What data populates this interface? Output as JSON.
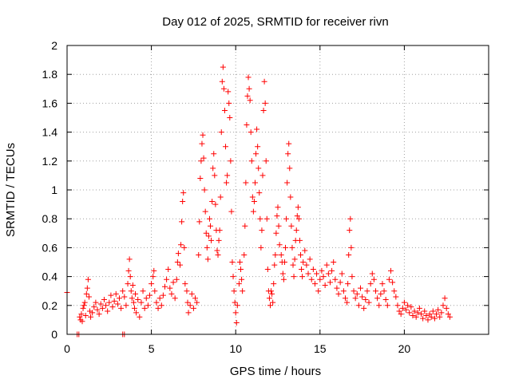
{
  "chart_data": {
    "type": "scatter",
    "title": "Day 012 of 2025, SRMTID for receiver rivn",
    "xlabel": "GPS time / hours",
    "ylabel": "SRMTID / TECUs",
    "xlim": [
      0,
      25
    ],
    "ylim": [
      0,
      2
    ],
    "xticks": [
      0,
      5,
      10,
      15,
      20
    ],
    "yticks": [
      0,
      0.2,
      0.4,
      0.6,
      0.8,
      1,
      1.2,
      1.4,
      1.6,
      1.8,
      2
    ],
    "grid": true,
    "marker": "plus",
    "series": [
      {
        "name": "SRMTID",
        "color": "#ff0000",
        "points": [
          [
            0.0,
            0.29
          ],
          [
            0.6,
            0.0
          ],
          [
            0.7,
            0.0
          ],
          [
            3.3,
            0.0
          ],
          [
            3.4,
            0.0
          ],
          [
            0.75,
            0.12
          ],
          [
            0.8,
            0.1
          ],
          [
            0.85,
            0.14
          ],
          [
            0.9,
            0.09
          ],
          [
            0.95,
            0.18
          ],
          [
            1.0,
            0.2
          ],
          [
            1.05,
            0.22
          ],
          [
            1.1,
            0.13
          ],
          [
            1.15,
            0.28
          ],
          [
            1.2,
            0.32
          ],
          [
            1.25,
            0.38
          ],
          [
            1.3,
            0.26
          ],
          [
            1.35,
            0.16
          ],
          [
            1.4,
            0.12
          ],
          [
            1.5,
            0.15
          ],
          [
            1.6,
            0.19
          ],
          [
            1.7,
            0.22
          ],
          [
            1.8,
            0.17
          ],
          [
            1.9,
            0.14
          ],
          [
            2.0,
            0.21
          ],
          [
            2.1,
            0.18
          ],
          [
            2.2,
            0.24
          ],
          [
            2.3,
            0.2
          ],
          [
            2.4,
            0.16
          ],
          [
            2.5,
            0.22
          ],
          [
            2.6,
            0.27
          ],
          [
            2.7,
            0.19
          ],
          [
            2.8,
            0.23
          ],
          [
            2.9,
            0.28
          ],
          [
            3.0,
            0.21
          ],
          [
            3.1,
            0.25
          ],
          [
            3.2,
            0.18
          ],
          [
            3.3,
            0.3
          ],
          [
            3.4,
            0.26
          ],
          [
            3.5,
            0.2
          ],
          [
            3.6,
            0.35
          ],
          [
            3.65,
            0.44
          ],
          [
            3.7,
            0.52
          ],
          [
            3.75,
            0.4
          ],
          [
            3.8,
            0.3
          ],
          [
            3.85,
            0.25
          ],
          [
            3.9,
            0.34
          ],
          [
            3.95,
            0.22
          ],
          [
            4.0,
            0.18
          ],
          [
            4.05,
            0.28
          ],
          [
            4.1,
            0.15
          ],
          [
            4.2,
            0.24
          ],
          [
            4.3,
            0.12
          ],
          [
            4.4,
            0.22
          ],
          [
            4.5,
            0.3
          ],
          [
            4.6,
            0.18
          ],
          [
            4.7,
            0.25
          ],
          [
            4.8,
            0.2
          ],
          [
            4.9,
            0.27
          ],
          [
            5.0,
            0.35
          ],
          [
            5.1,
            0.4
          ],
          [
            5.15,
            0.44
          ],
          [
            5.2,
            0.3
          ],
          [
            5.3,
            0.22
          ],
          [
            5.4,
            0.18
          ],
          [
            5.5,
            0.25
          ],
          [
            5.6,
            0.2
          ],
          [
            5.7,
            0.27
          ],
          [
            5.8,
            0.33
          ],
          [
            5.9,
            0.38
          ],
          [
            6.0,
            0.45
          ],
          [
            6.1,
            0.32
          ],
          [
            6.2,
            0.28
          ],
          [
            6.3,
            0.36
          ],
          [
            6.4,
            0.25
          ],
          [
            6.5,
            0.38
          ],
          [
            6.55,
            0.5
          ],
          [
            6.6,
            0.56
          ],
          [
            6.7,
            0.48
          ],
          [
            6.75,
            0.62
          ],
          [
            6.8,
            0.78
          ],
          [
            6.85,
            0.92
          ],
          [
            6.9,
            0.98
          ],
          [
            6.95,
            0.6
          ],
          [
            7.0,
            0.35
          ],
          [
            7.1,
            0.3
          ],
          [
            7.15,
            0.22
          ],
          [
            7.2,
            0.15
          ],
          [
            7.3,
            0.2
          ],
          [
            7.4,
            0.28
          ],
          [
            7.5,
            0.18
          ],
          [
            7.6,
            0.25
          ],
          [
            7.7,
            0.22
          ],
          [
            7.8,
            0.55
          ],
          [
            7.85,
            0.78
          ],
          [
            7.9,
            1.08
          ],
          [
            7.95,
            1.2
          ],
          [
            8.0,
            1.32
          ],
          [
            8.05,
            1.38
          ],
          [
            8.1,
            1.22
          ],
          [
            8.15,
            1.0
          ],
          [
            8.2,
            0.85
          ],
          [
            8.25,
            0.7
          ],
          [
            8.3,
            0.6
          ],
          [
            8.35,
            0.52
          ],
          [
            8.4,
            0.68
          ],
          [
            8.45,
            0.8
          ],
          [
            8.5,
            0.75
          ],
          [
            8.55,
            0.65
          ],
          [
            8.6,
            0.92
          ],
          [
            8.65,
            1.15
          ],
          [
            8.7,
            1.25
          ],
          [
            8.75,
            1.1
          ],
          [
            8.8,
            0.9
          ],
          [
            8.85,
            0.72
          ],
          [
            8.9,
            0.58
          ],
          [
            8.95,
            0.55
          ],
          [
            9.0,
            0.65
          ],
          [
            9.05,
            0.72
          ],
          [
            9.1,
            0.95
          ],
          [
            9.15,
            1.4
          ],
          [
            9.2,
            1.75
          ],
          [
            9.25,
            1.85
          ],
          [
            9.3,
            1.7
          ],
          [
            9.35,
            1.55
          ],
          [
            9.4,
            1.3
          ],
          [
            9.45,
            1.05
          ],
          [
            9.5,
            1.1
          ],
          [
            9.55,
            1.68
          ],
          [
            9.6,
            1.6
          ],
          [
            9.65,
            1.5
          ],
          [
            9.7,
            1.2
          ],
          [
            9.75,
            0.85
          ],
          [
            9.8,
            0.5
          ],
          [
            9.85,
            0.4
          ],
          [
            9.9,
            0.3
          ],
          [
            9.95,
            0.22
          ],
          [
            10.0,
            0.15
          ],
          [
            10.05,
            0.08
          ],
          [
            10.1,
            0.2
          ],
          [
            10.2,
            0.35
          ],
          [
            10.25,
            0.5
          ],
          [
            10.3,
            0.45
          ],
          [
            10.35,
            0.38
          ],
          [
            10.4,
            0.3
          ],
          [
            10.5,
            0.55
          ],
          [
            10.55,
            0.75
          ],
          [
            10.6,
            1.05
          ],
          [
            10.65,
            1.45
          ],
          [
            10.7,
            1.65
          ],
          [
            10.75,
            1.78
          ],
          [
            10.8,
            1.7
          ],
          [
            10.85,
            1.62
          ],
          [
            10.9,
            1.4
          ],
          [
            10.95,
            1.2
          ],
          [
            11.0,
            0.95
          ],
          [
            11.05,
            0.85
          ],
          [
            11.1,
            0.92
          ],
          [
            11.15,
            1.05
          ],
          [
            11.2,
            1.25
          ],
          [
            11.25,
            1.42
          ],
          [
            11.3,
            1.3
          ],
          [
            11.35,
            1.15
          ],
          [
            11.4,
            0.98
          ],
          [
            11.45,
            0.8
          ],
          [
            11.5,
            0.6
          ],
          [
            11.55,
            0.72
          ],
          [
            11.6,
            1.1
          ],
          [
            11.65,
            1.55
          ],
          [
            11.7,
            1.75
          ],
          [
            11.75,
            1.6
          ],
          [
            11.8,
            1.2
          ],
          [
            11.85,
            0.8
          ],
          [
            11.9,
            0.45
          ],
          [
            11.95,
            0.3
          ],
          [
            12.0,
            0.25
          ],
          [
            12.05,
            0.2
          ],
          [
            12.1,
            0.3
          ],
          [
            12.15,
            0.28
          ],
          [
            12.2,
            0.22
          ],
          [
            12.25,
            0.35
          ],
          [
            12.3,
            0.48
          ],
          [
            12.35,
            0.55
          ],
          [
            12.4,
            0.7
          ],
          [
            12.45,
            0.82
          ],
          [
            12.5,
            0.88
          ],
          [
            12.55,
            0.75
          ],
          [
            12.6,
            0.62
          ],
          [
            12.7,
            0.55
          ],
          [
            12.75,
            0.5
          ],
          [
            12.8,
            0.42
          ],
          [
            12.85,
            0.38
          ],
          [
            12.9,
            0.5
          ],
          [
            12.95,
            0.6
          ],
          [
            13.0,
            0.8
          ],
          [
            13.05,
            1.05
          ],
          [
            13.1,
            1.25
          ],
          [
            13.15,
            1.32
          ],
          [
            13.2,
            1.15
          ],
          [
            13.25,
            0.95
          ],
          [
            13.3,
            0.75
          ],
          [
            13.35,
            0.6
          ],
          [
            13.4,
            0.48
          ],
          [
            13.45,
            0.4
          ],
          [
            13.5,
            0.52
          ],
          [
            13.55,
            0.65
          ],
          [
            13.6,
            0.72
          ],
          [
            13.65,
            0.82
          ],
          [
            13.7,
            0.88
          ],
          [
            13.75,
            0.8
          ],
          [
            13.8,
            0.65
          ],
          [
            13.85,
            0.55
          ],
          [
            13.9,
            0.45
          ],
          [
            13.95,
            0.4
          ],
          [
            14.0,
            0.5
          ],
          [
            14.1,
            0.58
          ],
          [
            14.2,
            0.48
          ],
          [
            14.3,
            0.42
          ],
          [
            14.4,
            0.52
          ],
          [
            14.5,
            0.38
          ],
          [
            14.6,
            0.45
          ],
          [
            14.7,
            0.35
          ],
          [
            14.8,
            0.42
          ],
          [
            14.9,
            0.3
          ],
          [
            15.0,
            0.38
          ],
          [
            15.1,
            0.44
          ],
          [
            15.2,
            0.4
          ],
          [
            15.3,
            0.34
          ],
          [
            15.4,
            0.48
          ],
          [
            15.5,
            0.42
          ],
          [
            15.6,
            0.36
          ],
          [
            15.7,
            0.44
          ],
          [
            15.8,
            0.5
          ],
          [
            15.9,
            0.38
          ],
          [
            16.0,
            0.32
          ],
          [
            16.1,
            0.28
          ],
          [
            16.2,
            0.36
          ],
          [
            16.3,
            0.42
          ],
          [
            16.4,
            0.3
          ],
          [
            16.5,
            0.25
          ],
          [
            16.6,
            0.22
          ],
          [
            16.65,
            0.35
          ],
          [
            16.7,
            0.55
          ],
          [
            16.75,
            0.72
          ],
          [
            16.8,
            0.8
          ],
          [
            16.85,
            0.6
          ],
          [
            16.9,
            0.4
          ],
          [
            17.0,
            0.3
          ],
          [
            17.1,
            0.25
          ],
          [
            17.2,
            0.28
          ],
          [
            17.3,
            0.2
          ],
          [
            17.4,
            0.32
          ],
          [
            17.5,
            0.26
          ],
          [
            17.6,
            0.18
          ],
          [
            17.7,
            0.24
          ],
          [
            17.8,
            0.3
          ],
          [
            17.9,
            0.22
          ],
          [
            18.0,
            0.35
          ],
          [
            18.1,
            0.42
          ],
          [
            18.2,
            0.38
          ],
          [
            18.3,
            0.3
          ],
          [
            18.4,
            0.25
          ],
          [
            18.5,
            0.2
          ],
          [
            18.6,
            0.28
          ],
          [
            18.7,
            0.35
          ],
          [
            18.8,
            0.3
          ],
          [
            18.9,
            0.24
          ],
          [
            19.0,
            0.2
          ],
          [
            19.1,
            0.38
          ],
          [
            19.2,
            0.44
          ],
          [
            19.3,
            0.36
          ],
          [
            19.4,
            0.3
          ],
          [
            19.5,
            0.26
          ],
          [
            19.6,
            0.2
          ],
          [
            19.7,
            0.16
          ],
          [
            19.8,
            0.14
          ],
          [
            19.9,
            0.18
          ],
          [
            20.0,
            0.22
          ],
          [
            20.1,
            0.17
          ],
          [
            20.2,
            0.2
          ],
          [
            20.3,
            0.15
          ],
          [
            20.4,
            0.19
          ],
          [
            20.5,
            0.13
          ],
          [
            20.6,
            0.16
          ],
          [
            20.7,
            0.12
          ],
          [
            20.8,
            0.15
          ],
          [
            20.9,
            0.18
          ],
          [
            21.0,
            0.14
          ],
          [
            21.1,
            0.11
          ],
          [
            21.2,
            0.16
          ],
          [
            21.3,
            0.13
          ],
          [
            21.4,
            0.1
          ],
          [
            21.5,
            0.14
          ],
          [
            21.6,
            0.12
          ],
          [
            21.7,
            0.16
          ],
          [
            21.8,
            0.11
          ],
          [
            21.9,
            0.14
          ],
          [
            22.0,
            0.17
          ],
          [
            22.1,
            0.12
          ],
          [
            22.2,
            0.15
          ],
          [
            22.3,
            0.2
          ],
          [
            22.4,
            0.25
          ],
          [
            22.5,
            0.18
          ],
          [
            22.6,
            0.14
          ],
          [
            22.7,
            0.12
          ]
        ]
      }
    ]
  }
}
